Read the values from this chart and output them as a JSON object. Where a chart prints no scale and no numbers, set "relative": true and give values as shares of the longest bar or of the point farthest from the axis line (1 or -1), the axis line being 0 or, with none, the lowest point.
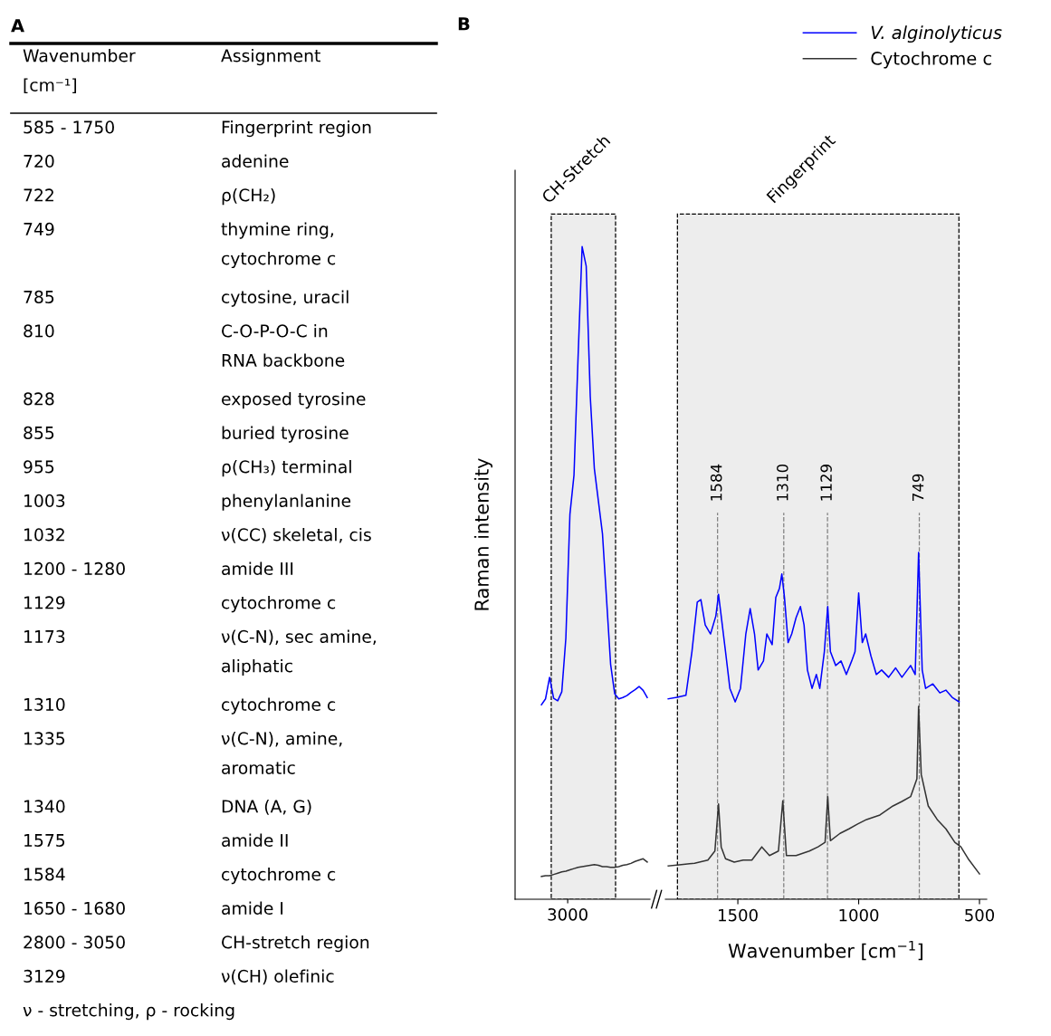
{
  "chart_data": [
    {
      "type": "line",
      "title": "B",
      "ylabel": "Raman intensity",
      "relative": true,
      "annotations": [
        "3000",
        "CH-Stretch"
      ],
      "categories": [
        null,
        null,
        null,
        null,
        null,
        null,
        null,
        null,
        null,
        null,
        null,
        null,
        null,
        null,
        null,
        null,
        null,
        null,
        null,
        null,
        null,
        null,
        null,
        null,
        null,
        null,
        null
      ],
      "series": [
        {
          "color": "#0000ff",
          "values": [
            0.298,
            0.307,
            0.34,
            0.308,
            0.304,
            0.318,
            0.4,
            0.59,
            0.65,
            0.83,
            1.0,
            0.97,
            0.77,
            0.66,
            0.61,
            0.56,
            0.46,
            0.36,
            0.315,
            0.307,
            0.309,
            0.312,
            0.317,
            0.321,
            0.326,
            0.32,
            0.309
          ]
        },
        {
          "color": "#333333",
          "values": [
            0.035,
            0.036,
            0.036,
            0.038,
            0.04,
            0.042,
            0.043,
            0.045,
            0.047,
            0.049,
            0.05,
            0.051,
            0.052,
            0.053,
            0.052,
            0.05,
            0.05,
            0.049,
            0.049,
            0.05,
            0.052,
            0.053,
            0.055,
            0.058,
            0.06,
            0.062,
            0.057
          ]
        }
      ]
    },
    {
      "type": "line",
      "xlabel": "Wavenumber [cm$^{−1}$]",
      "relative": true,
      "xlim": [
        1800,
        470
      ],
      "xticks": [
        1500,
        1000,
        500
      ],
      "legend": "top right",
      "bands": [
        {
          "axis": "x",
          "from": 1750,
          "to": 585,
          "label": "Fingerprint",
          "color": "#ededed"
        }
      ],
      "ref_lines": [
        {
          "axis": "x",
          "value": 1584,
          "label": "1584",
          "color": "#808080",
          "line_style": "dashed"
        },
        {
          "axis": "x",
          "value": 1310,
          "label": "1310",
          "color": "#808080",
          "line_style": "dashed"
        },
        {
          "axis": "x",
          "value": 1129,
          "label": "1129",
          "color": "#808080",
          "line_style": "dashed"
        },
        {
          "axis": "x",
          "value": 749,
          "label": "749",
          "color": "#808080",
          "line_style": "dashed"
        }
      ],
      "series": [
        {
          "name": "V. alginolyticus",
          "color": "#0000ff",
          "x": [
            1788,
            1752,
            1715,
            1690,
            1668,
            1653,
            1635,
            1613,
            1591,
            1580,
            1569,
            1551,
            1533,
            1511,
            1489,
            1467,
            1449,
            1431,
            1416,
            1394,
            1380,
            1358,
            1343,
            1328,
            1318,
            1307,
            1292,
            1277,
            1259,
            1241,
            1226,
            1212,
            1193,
            1175,
            1161,
            1142,
            1128,
            1117,
            1095,
            1073,
            1051,
            1029,
            1015,
            1000,
            985,
            971,
            949,
            927,
            905,
            876,
            847,
            821,
            785,
            766,
            752,
            737,
            723,
            693,
            664,
            639,
            613,
            584
          ],
          "values": [
            0.578,
            0.582,
            0.588,
            0.714,
            0.857,
            0.864,
            0.791,
            0.765,
            0.817,
            0.879,
            0.817,
            0.714,
            0.608,
            0.569,
            0.608,
            0.765,
            0.838,
            0.765,
            0.661,
            0.687,
            0.765,
            0.734,
            0.87,
            0.896,
            0.938,
            0.87,
            0.74,
            0.765,
            0.812,
            0.844,
            0.791,
            0.661,
            0.608,
            0.648,
            0.608,
            0.714,
            0.844,
            0.714,
            0.674,
            0.687,
            0.648,
            0.687,
            0.714,
            0.883,
            0.74,
            0.765,
            0.701,
            0.648,
            0.661,
            0.64,
            0.667,
            0.64,
            0.674,
            0.648,
            1.0,
            0.661,
            0.608,
            0.621,
            0.595,
            0.603,
            0.582,
            0.569
          ]
        },
        {
          "name": "Cytochrome c",
          "color": "#333333",
          "x": [
            1788,
            1734,
            1679,
            1624,
            1595,
            1580,
            1569,
            1551,
            1515,
            1478,
            1442,
            1401,
            1369,
            1332,
            1314,
            1299,
            1259,
            1204,
            1168,
            1139,
            1128,
            1117,
            1077,
            1040,
            1004,
            967,
            912,
            858,
            821,
            785,
            759,
            752,
            741,
            712,
            675,
            639,
            602,
            577,
            547,
            500
          ],
          "values": [
            0.096,
            0.1,
            0.104,
            0.113,
            0.139,
            0.275,
            0.151,
            0.117,
            0.107,
            0.113,
            0.113,
            0.151,
            0.126,
            0.139,
            0.284,
            0.126,
            0.126,
            0.139,
            0.151,
            0.164,
            0.296,
            0.169,
            0.19,
            0.203,
            0.217,
            0.23,
            0.243,
            0.269,
            0.282,
            0.296,
            0.347,
            0.556,
            0.36,
            0.269,
            0.23,
            0.203,
            0.164,
            0.151,
            0.117,
            0.073
          ]
        }
      ]
    },
    {
      "type": "other",
      "title": "A",
      "annotations": [
        "Wavenumber\n[cm⁻¹]",
        "Assignment",
        "585 - 1750",
        "Fingerprint region",
        "720",
        "adenine",
        "722",
        "ρ(CH₂)",
        "749",
        "thymine ring,\ncytochrome c",
        "785",
        "cytosine, uracil",
        "810",
        "C-O-P-O-C in\nRNA backbone",
        "828",
        "exposed tyrosine",
        "855",
        "buried tyrosine",
        "955",
        "ρ(CH₃) terminal",
        "1003",
        "phenylanlanine",
        "1032",
        "ν(CC) skeletal, cis",
        "1200 - 1280",
        "amide III",
        "1129",
        "cytochrome c",
        "1173",
        "ν(C-N), sec amine,\naliphatic",
        "1310",
        "cytochrome c",
        "1335",
        "ν(C-N), amine,\naromatic",
        "1340",
        "DNA (A, G)",
        "1575",
        "amide II",
        "1584",
        "cytochrome c",
        "1650 - 1680",
        "amide I",
        "2800 - 3050",
        "CH-stretch region",
        "3129",
        "ν(CH) olefinic",
        "ν - stretching, ρ - rocking"
      ]
    }
  ]
}
